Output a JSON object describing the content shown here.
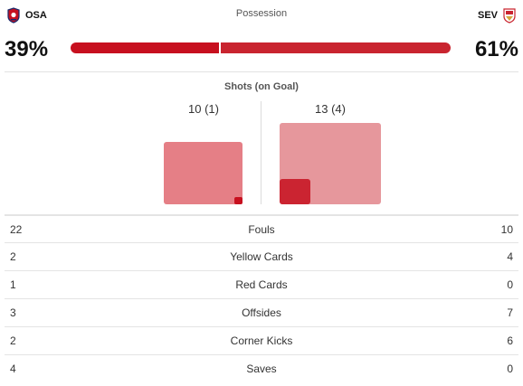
{
  "home": {
    "abbr": "OSA",
    "possession_label": "39%",
    "possession": 39,
    "shots_label": "10 (1)",
    "shots": 10,
    "shots_on_goal": 1,
    "crest_color": "#c7101f"
  },
  "away": {
    "abbr": "SEV",
    "possession_label": "61%",
    "possession": 61,
    "shots_label": "13 (4)",
    "shots": 13,
    "shots_on_goal": 4,
    "crest_color": "#c9242f"
  },
  "possession_title": "Possession",
  "shots_title": "Shots (on Goal)",
  "stats": [
    {
      "label": "Fouls",
      "home": "22",
      "away": "10"
    },
    {
      "label": "Yellow Cards",
      "home": "2",
      "away": "4"
    },
    {
      "label": "Red Cards",
      "home": "1",
      "away": "0"
    },
    {
      "label": "Offsides",
      "home": "3",
      "away": "7"
    },
    {
      "label": "Corner Kicks",
      "home": "2",
      "away": "6"
    },
    {
      "label": "Saves",
      "home": "4",
      "away": "0"
    }
  ]
}
